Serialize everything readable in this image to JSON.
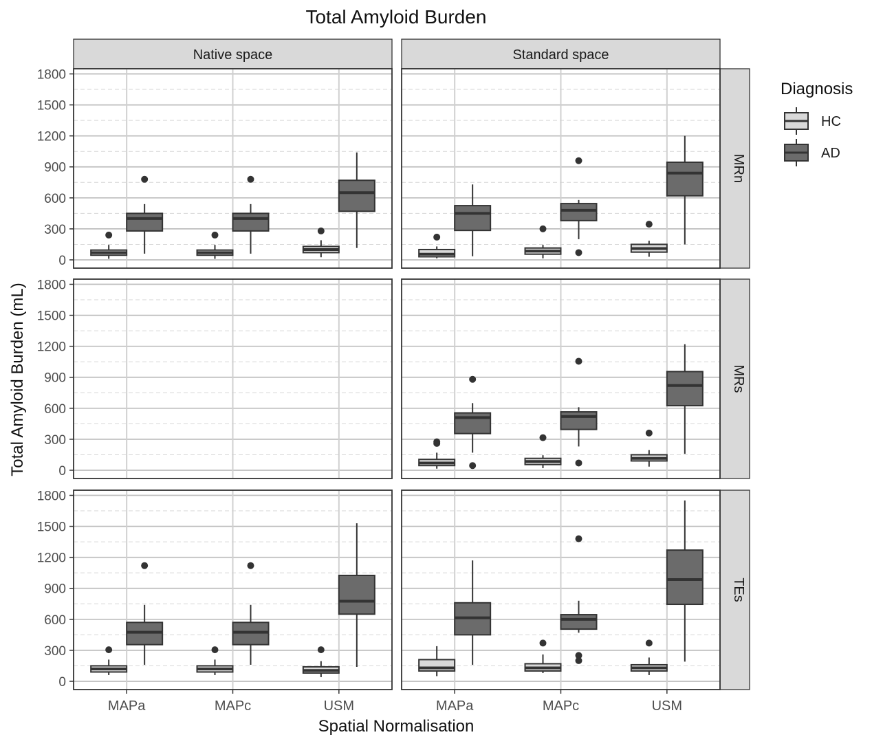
{
  "chart_data": {
    "type": "box",
    "title": "Total Amyloid Burden",
    "xlabel": "Spatial Normalisation",
    "ylabel": "Total Amyloid Burden (mL)",
    "categories": [
      "MAPa",
      "MAPc",
      "USM"
    ],
    "y_ticks": [
      0,
      300,
      600,
      900,
      1200,
      1500,
      1800
    ],
    "ylim": [
      -80,
      1850
    ],
    "facet_columns": [
      "Native space",
      "Standard space"
    ],
    "facet_rows": [
      "MRn",
      "MRs",
      "TEs"
    ],
    "legend": {
      "title": "Diagnosis",
      "position": "right",
      "entries": [
        {
          "label": "HC",
          "color": "#d9d9d9"
        },
        {
          "label": "AD",
          "color": "#6b6b6b"
        }
      ]
    },
    "grid": true,
    "colors": {
      "HC": "#d9d9d9",
      "AD": "#6b6b6b",
      "strip": "#d9d9d9",
      "line": "#333333"
    },
    "panels": [
      {
        "facet_column": "Native space",
        "facet_row": "MRn",
        "series": [
          {
            "name": "HC",
            "boxes": [
              {
                "category": "MAPa",
                "min": 10,
                "q1": 45,
                "median": 70,
                "q3": 95,
                "max": 145,
                "outliers": [
                  240
                ]
              },
              {
                "category": "MAPc",
                "min": 10,
                "q1": 45,
                "median": 70,
                "q3": 95,
                "max": 145,
                "outliers": [
                  240
                ]
              },
              {
                "category": "USM",
                "min": 25,
                "q1": 70,
                "median": 100,
                "q3": 130,
                "max": 190,
                "outliers": [
                  280
                ]
              }
            ]
          },
          {
            "name": "AD",
            "boxes": [
              {
                "category": "MAPa",
                "min": 60,
                "q1": 280,
                "median": 400,
                "q3": 450,
                "max": 540,
                "outliers": [
                  780
                ]
              },
              {
                "category": "MAPc",
                "min": 60,
                "q1": 280,
                "median": 400,
                "q3": 450,
                "max": 540,
                "outliers": [
                  780
                ]
              },
              {
                "category": "USM",
                "min": 115,
                "q1": 470,
                "median": 650,
                "q3": 770,
                "max": 1040,
                "outliers": []
              }
            ]
          }
        ]
      },
      {
        "facet_column": "Standard space",
        "facet_row": "MRn",
        "series": [
          {
            "name": "HC",
            "boxes": [
              {
                "category": "MAPa",
                "min": 15,
                "q1": 30,
                "median": 55,
                "q3": 100,
                "max": 130,
                "outliers": [
                  220
                ]
              },
              {
                "category": "MAPc",
                "min": 15,
                "q1": 55,
                "median": 85,
                "q3": 115,
                "max": 145,
                "outliers": [
                  300
                ]
              },
              {
                "category": "USM",
                "min": 30,
                "q1": 75,
                "median": 110,
                "q3": 150,
                "max": 185,
                "outliers": [
                  345
                ]
              }
            ]
          },
          {
            "name": "AD",
            "boxes": [
              {
                "category": "MAPa",
                "min": 35,
                "q1": 285,
                "median": 450,
                "q3": 525,
                "max": 730,
                "outliers": []
              },
              {
                "category": "MAPc",
                "min": 200,
                "q1": 380,
                "median": 480,
                "q3": 545,
                "max": 580,
                "outliers": [
                  960,
                  70
                ]
              },
              {
                "category": "USM",
                "min": 150,
                "q1": 620,
                "median": 840,
                "q3": 945,
                "max": 1200,
                "outliers": []
              }
            ]
          }
        ]
      },
      {
        "facet_column": "Native space",
        "facet_row": "MRs",
        "series": []
      },
      {
        "facet_column": "Standard space",
        "facet_row": "MRs",
        "series": [
          {
            "name": "HC",
            "boxes": [
              {
                "category": "MAPa",
                "min": 15,
                "q1": 45,
                "median": 70,
                "q3": 105,
                "max": 170,
                "outliers": [
                  260,
                  275
                ]
              },
              {
                "category": "MAPc",
                "min": 20,
                "q1": 55,
                "median": 85,
                "q3": 115,
                "max": 145,
                "outliers": [
                  315
                ]
              },
              {
                "category": "USM",
                "min": 35,
                "q1": 90,
                "median": 115,
                "q3": 150,
                "max": 195,
                "outliers": [
                  360
                ]
              }
            ]
          },
          {
            "name": "AD",
            "boxes": [
              {
                "category": "MAPa",
                "min": 170,
                "q1": 355,
                "median": 510,
                "q3": 555,
                "max": 650,
                "outliers": [
                  880,
                  45
                ]
              },
              {
                "category": "MAPc",
                "min": 230,
                "q1": 395,
                "median": 520,
                "q3": 565,
                "max": 610,
                "outliers": [
                  1055,
                  70
                ]
              },
              {
                "category": "USM",
                "min": 160,
                "q1": 625,
                "median": 820,
                "q3": 955,
                "max": 1220,
                "outliers": []
              }
            ]
          }
        ]
      },
      {
        "facet_column": "Native space",
        "facet_row": "TEs",
        "series": [
          {
            "name": "HC",
            "boxes": [
              {
                "category": "MAPa",
                "min": 60,
                "q1": 90,
                "median": 120,
                "q3": 150,
                "max": 210,
                "outliers": [
                  305
                ]
              },
              {
                "category": "MAPc",
                "min": 60,
                "q1": 90,
                "median": 120,
                "q3": 150,
                "max": 210,
                "outliers": [
                  305
                ]
              },
              {
                "category": "USM",
                "min": 40,
                "q1": 80,
                "median": 105,
                "q3": 140,
                "max": 195,
                "outliers": [
                  305
                ]
              }
            ]
          },
          {
            "name": "AD",
            "boxes": [
              {
                "category": "MAPa",
                "min": 160,
                "q1": 355,
                "median": 475,
                "q3": 570,
                "max": 740,
                "outliers": [
                  1120
                ]
              },
              {
                "category": "MAPc",
                "min": 160,
                "q1": 355,
                "median": 475,
                "q3": 570,
                "max": 740,
                "outliers": [
                  1120
                ]
              },
              {
                "category": "USM",
                "min": 140,
                "q1": 650,
                "median": 775,
                "q3": 1025,
                "max": 1530,
                "outliers": []
              }
            ]
          }
        ]
      },
      {
        "facet_column": "Standard space",
        "facet_row": "TEs",
        "series": [
          {
            "name": "HC",
            "boxes": [
              {
                "category": "MAPa",
                "min": 50,
                "q1": 100,
                "median": 130,
                "q3": 210,
                "max": 340,
                "outliers": []
              },
              {
                "category": "MAPc",
                "min": 80,
                "q1": 100,
                "median": 130,
                "q3": 170,
                "max": 260,
                "outliers": [
                  370
                ]
              },
              {
                "category": "USM",
                "min": 60,
                "q1": 100,
                "median": 130,
                "q3": 160,
                "max": 230,
                "outliers": [
                  370
                ]
              }
            ]
          },
          {
            "name": "AD",
            "boxes": [
              {
                "category": "MAPa",
                "min": 160,
                "q1": 450,
                "median": 615,
                "q3": 760,
                "max": 1170,
                "outliers": []
              },
              {
                "category": "MAPc",
                "min": 470,
                "q1": 505,
                "median": 600,
                "q3": 645,
                "max": 780,
                "outliers": [
                  1380,
                  250,
                  200
                ]
              },
              {
                "category": "USM",
                "min": 190,
                "q1": 745,
                "median": 985,
                "q3": 1270,
                "max": 1750,
                "outliers": []
              }
            ]
          }
        ]
      }
    ]
  }
}
